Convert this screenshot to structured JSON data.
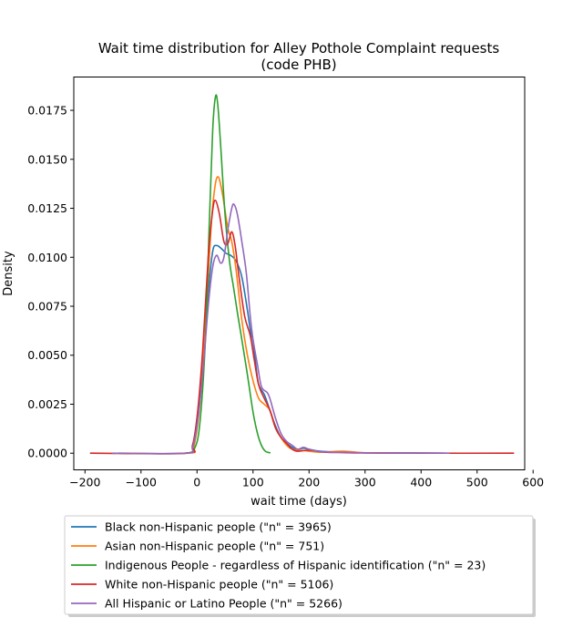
{
  "chart_data": {
    "type": "line",
    "title": "Wait time distribution  for Alley Pothole Complaint requests",
    "subtitle": "(code PHB)",
    "xlabel": "wait time (days)",
    "ylabel": "Density",
    "xlim": [
      -220,
      585
    ],
    "ylim": [
      -0.00085,
      0.0192
    ],
    "xticks": [
      -200,
      -100,
      0,
      100,
      200,
      300,
      400,
      500,
      600
    ],
    "xtick_labels": [
      "−200",
      "−100",
      "0",
      "100",
      "200",
      "300",
      "400",
      "500",
      "600"
    ],
    "yticks": [
      0,
      0.0025,
      0.005,
      0.0075,
      0.01,
      0.0125,
      0.015,
      0.0175
    ],
    "ytick_labels": [
      "0.0000",
      "0.0025",
      "0.0050",
      "0.0075",
      "0.0100",
      "0.0125",
      "0.0150",
      "0.0175"
    ],
    "grid": false,
    "legend_position": "below",
    "series": [
      {
        "name": "Black non-Hispanic people (\"n\" = 3965)",
        "color": "#1f77b4",
        "points": [
          [
            -140,
            0
          ],
          [
            -20,
            0
          ],
          [
            -8,
            0.0004
          ],
          [
            0,
            0.0018
          ],
          [
            10,
            0.0045
          ],
          [
            20,
            0.0082
          ],
          [
            28,
            0.0103
          ],
          [
            35,
            0.0106
          ],
          [
            45,
            0.0104
          ],
          [
            52,
            0.0102
          ],
          [
            60,
            0.0101
          ],
          [
            70,
            0.0098
          ],
          [
            80,
            0.009
          ],
          [
            90,
            0.0073
          ],
          [
            95,
            0.0063
          ],
          [
            100,
            0.0057
          ],
          [
            105,
            0.0045
          ],
          [
            110,
            0.0035
          ],
          [
            120,
            0.003
          ],
          [
            130,
            0.0022
          ],
          [
            140,
            0.0014
          ],
          [
            150,
            0.0008
          ],
          [
            160,
            0.0005
          ],
          [
            170,
            0.0003
          ],
          [
            180,
            0.0002
          ],
          [
            190,
            0.00025
          ],
          [
            200,
            0.0002
          ],
          [
            220,
            0.0001
          ],
          [
            260,
            5e-05
          ],
          [
            300,
            2e-05
          ],
          [
            400,
            1e-05
          ],
          [
            440,
            0
          ]
        ]
      },
      {
        "name": "Asian non-Hispanic people (\"n\" = 751)",
        "color": "#ff7f0e",
        "points": [
          [
            -130,
            0
          ],
          [
            -15,
            0
          ],
          [
            -5,
            0.0004
          ],
          [
            5,
            0.0025
          ],
          [
            15,
            0.0065
          ],
          [
            25,
            0.0115
          ],
          [
            32,
            0.0136
          ],
          [
            38,
            0.0141
          ],
          [
            45,
            0.0133
          ],
          [
            55,
            0.0115
          ],
          [
            62,
            0.0108
          ],
          [
            70,
            0.0093
          ],
          [
            80,
            0.0068
          ],
          [
            90,
            0.005
          ],
          [
            100,
            0.0037
          ],
          [
            110,
            0.0028
          ],
          [
            120,
            0.0025
          ],
          [
            130,
            0.0022
          ],
          [
            140,
            0.0013
          ],
          [
            150,
            0.0008
          ],
          [
            160,
            0.0004
          ],
          [
            170,
            0.0002
          ],
          [
            185,
            0.00015
          ],
          [
            200,
            0.0001
          ],
          [
            220,
            5e-05
          ],
          [
            260,
            0.0001
          ],
          [
            300,
            2e-05
          ],
          [
            350,
            0
          ]
        ]
      },
      {
        "name": "Indigenous People - regardless of Hispanic identification (\"n\" = 23)",
        "color": "#2ca02c",
        "points": [
          [
            -20,
            0
          ],
          [
            -5,
            0.0002
          ],
          [
            5,
            0.0015
          ],
          [
            15,
            0.0058
          ],
          [
            22,
            0.0118
          ],
          [
            28,
            0.0165
          ],
          [
            33,
            0.0182
          ],
          [
            37,
            0.0178
          ],
          [
            42,
            0.0158
          ],
          [
            50,
            0.0122
          ],
          [
            58,
            0.0098
          ],
          [
            65,
            0.0085
          ],
          [
            72,
            0.0072
          ],
          [
            80,
            0.0058
          ],
          [
            90,
            0.004
          ],
          [
            100,
            0.0021
          ],
          [
            108,
            0.001
          ],
          [
            115,
            0.0004
          ],
          [
            122,
            0.0001
          ],
          [
            130,
            2e-05
          ]
        ]
      },
      {
        "name": "White non-Hispanic people (\"n\" = 5106)",
        "color": "#d62728",
        "points": [
          [
            -190,
            0
          ],
          [
            -20,
            0
          ],
          [
            -8,
            0.0004
          ],
          [
            0,
            0.0018
          ],
          [
            10,
            0.0052
          ],
          [
            20,
            0.01
          ],
          [
            28,
            0.0124
          ],
          [
            33,
            0.0129
          ],
          [
            40,
            0.0122
          ],
          [
            48,
            0.0108
          ],
          [
            55,
            0.0107
          ],
          [
            62,
            0.0113
          ],
          [
            68,
            0.0106
          ],
          [
            75,
            0.009
          ],
          [
            85,
            0.007
          ],
          [
            95,
            0.006
          ],
          [
            102,
            0.0048
          ],
          [
            110,
            0.0035
          ],
          [
            120,
            0.0028
          ],
          [
            130,
            0.0022
          ],
          [
            140,
            0.0013
          ],
          [
            150,
            0.0008
          ],
          [
            160,
            0.0005
          ],
          [
            170,
            0.0002
          ],
          [
            180,
            0.0001
          ],
          [
            200,
            0.00015
          ],
          [
            230,
            5e-05
          ],
          [
            260,
            3e-05
          ],
          [
            300,
            1e-05
          ],
          [
            400,
            0
          ],
          [
            565,
            0
          ]
        ]
      },
      {
        "name": "All Hispanic or Latino People (\"n\" = 5266)",
        "color": "#9467bd",
        "points": [
          [
            -150,
            0
          ],
          [
            -20,
            0
          ],
          [
            -8,
            0.0003
          ],
          [
            0,
            0.0014
          ],
          [
            10,
            0.004
          ],
          [
            20,
            0.0075
          ],
          [
            28,
            0.0095
          ],
          [
            35,
            0.0101
          ],
          [
            42,
            0.0097
          ],
          [
            48,
            0.01
          ],
          [
            55,
            0.0114
          ],
          [
            62,
            0.0125
          ],
          [
            66,
            0.0127
          ],
          [
            72,
            0.0122
          ],
          [
            80,
            0.0108
          ],
          [
            88,
            0.0092
          ],
          [
            95,
            0.007
          ],
          [
            100,
            0.0058
          ],
          [
            108,
            0.0045
          ],
          [
            115,
            0.0034
          ],
          [
            125,
            0.0031
          ],
          [
            130,
            0.0028
          ],
          [
            140,
            0.0018
          ],
          [
            150,
            0.001
          ],
          [
            160,
            0.0006
          ],
          [
            170,
            0.0004
          ],
          [
            180,
            0.0002
          ],
          [
            190,
            0.0003
          ],
          [
            200,
            0.0002
          ],
          [
            215,
            0.0001
          ],
          [
            240,
            5e-05
          ],
          [
            270,
            5e-05
          ],
          [
            300,
            2e-05
          ],
          [
            400,
            1e-05
          ],
          [
            450,
            0
          ]
        ]
      }
    ]
  }
}
